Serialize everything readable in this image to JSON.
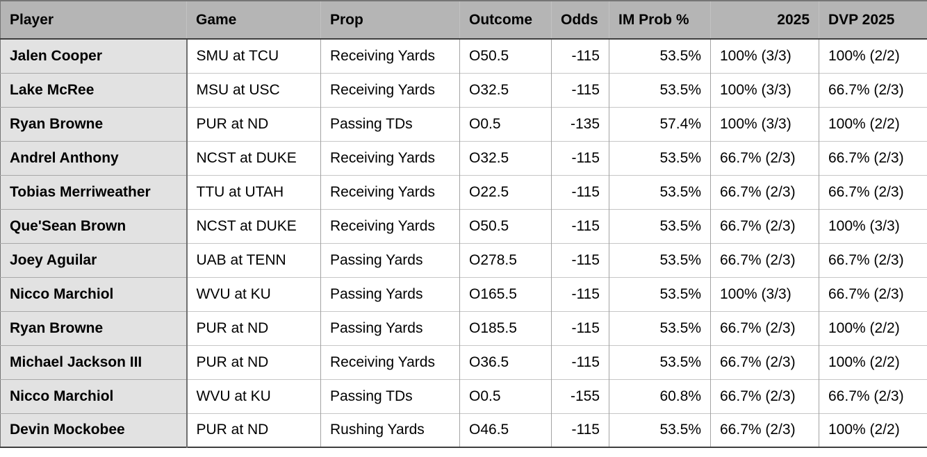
{
  "colors": {
    "header_bg": "#b5b5b5",
    "header_separator": "#c2c2c2",
    "row_label_bg": "#e2e2e2",
    "cell_bg": "#ffffff",
    "text": "#000000",
    "strong_line": "#3e3e3e",
    "column_line": "#a3a3a3",
    "row_line": "#c6c6c6",
    "row_label_line": "#6f6f6f"
  },
  "chart_data": {
    "type": "table",
    "columns": [
      "Player",
      "Game",
      "Prop",
      "Outcome",
      "Odds",
      "IM Prob %",
      "2025",
      "DVP 2025"
    ],
    "rows": [
      [
        "Jalen Cooper",
        "SMU at TCU",
        "Receiving Yards",
        "O50.5",
        "-115",
        "53.5%",
        "100% (3/3)",
        "100% (2/2)"
      ],
      [
        "Lake McRee",
        "MSU at USC",
        "Receiving Yards",
        "O32.5",
        "-115",
        "53.5%",
        "100% (3/3)",
        "66.7% (2/3)"
      ],
      [
        "Ryan Browne",
        "PUR at ND",
        "Passing TDs",
        "O0.5",
        "-135",
        "57.4%",
        "100% (3/3)",
        "100% (2/2)"
      ],
      [
        "Andrel Anthony",
        "NCST at DUKE",
        "Receiving Yards",
        "O32.5",
        "-115",
        "53.5%",
        "66.7% (2/3)",
        "66.7% (2/3)"
      ],
      [
        "Tobias Merriweather",
        "TTU at UTAH",
        "Receiving Yards",
        "O22.5",
        "-115",
        "53.5%",
        "66.7% (2/3)",
        "66.7% (2/3)"
      ],
      [
        "Que'Sean Brown",
        "NCST at DUKE",
        "Receiving Yards",
        "O50.5",
        "-115",
        "53.5%",
        "66.7% (2/3)",
        "100% (3/3)"
      ],
      [
        "Joey Aguilar",
        "UAB at TENN",
        "Passing Yards",
        "O278.5",
        "-115",
        "53.5%",
        "66.7% (2/3)",
        "66.7% (2/3)"
      ],
      [
        "Nicco Marchiol",
        "WVU at KU",
        "Passing Yards",
        "O165.5",
        "-115",
        "53.5%",
        "100% (3/3)",
        "66.7% (2/3)"
      ],
      [
        "Ryan Browne",
        "PUR at ND",
        "Passing Yards",
        "O185.5",
        "-115",
        "53.5%",
        "66.7% (2/3)",
        "100% (2/2)"
      ],
      [
        "Michael Jackson III",
        "PUR at ND",
        "Receiving Yards",
        "O36.5",
        "-115",
        "53.5%",
        "66.7% (2/3)",
        "100% (2/2)"
      ],
      [
        "Nicco Marchiol",
        "WVU at KU",
        "Passing TDs",
        "O0.5",
        "-155",
        "60.8%",
        "66.7% (2/3)",
        "66.7% (2/3)"
      ],
      [
        "Devin Mockobee",
        "PUR at ND",
        "Rushing Yards",
        "O46.5",
        "-115",
        "53.5%",
        "66.7% (2/3)",
        "100% (2/2)"
      ]
    ]
  }
}
